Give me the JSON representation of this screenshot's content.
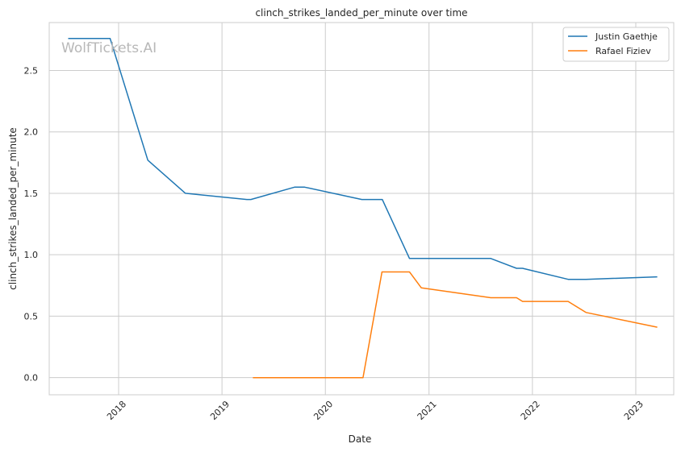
{
  "chart_data": {
    "type": "line",
    "title": "clinch_strikes_landed_per_minute over time",
    "xlabel": "Date",
    "ylabel": "clinch_strikes_landed_per_minute",
    "watermark": "WolfTickets.AI",
    "x_axis": {
      "kind": "date",
      "range": [
        "2017-05-01",
        "2023-05-15"
      ],
      "ticks": [
        "2018-01-01",
        "2019-01-01",
        "2020-01-01",
        "2021-01-01",
        "2022-01-01",
        "2023-01-01"
      ],
      "tick_labels": [
        "2018",
        "2019",
        "2020",
        "2021",
        "2022",
        "2023"
      ]
    },
    "y_axis": {
      "range": [
        -0.14,
        2.89
      ],
      "ticks": [
        0.0,
        0.5,
        1.0,
        1.5,
        2.0,
        2.5
      ],
      "tick_labels": [
        "0.0",
        "0.5",
        "1.0",
        "1.5",
        "2.0",
        "2.5"
      ]
    },
    "grid": true,
    "legend": {
      "position": "top-right"
    },
    "series": [
      {
        "name": "Justin Gaethje",
        "color": "#1f77b4",
        "points": [
          {
            "x": "2017-07-07",
            "y": 2.76
          },
          {
            "x": "2017-12-02",
            "y": 2.76
          },
          {
            "x": "2018-04-14",
            "y": 1.77
          },
          {
            "x": "2018-08-25",
            "y": 1.5
          },
          {
            "x": "2019-03-30",
            "y": 1.45
          },
          {
            "x": "2019-04-13",
            "y": 1.45
          },
          {
            "x": "2019-09-14",
            "y": 1.55
          },
          {
            "x": "2019-10-20",
            "y": 1.55
          },
          {
            "x": "2020-05-09",
            "y": 1.45
          },
          {
            "x": "2020-07-20",
            "y": 1.45
          },
          {
            "x": "2020-10-24",
            "y": 0.97
          },
          {
            "x": "2021-08-07",
            "y": 0.97
          },
          {
            "x": "2021-11-06",
            "y": 0.89
          },
          {
            "x": "2021-11-27",
            "y": 0.89
          },
          {
            "x": "2022-05-07",
            "y": 0.8
          },
          {
            "x": "2022-07-09",
            "y": 0.8
          },
          {
            "x": "2023-03-18",
            "y": 0.82
          }
        ]
      },
      {
        "name": "Rafael Fiziev",
        "color": "#ff7f0e",
        "points": [
          {
            "x": "2019-04-20",
            "y": 0.0
          },
          {
            "x": "2020-05-13",
            "y": 0.0
          },
          {
            "x": "2020-07-19",
            "y": 0.86
          },
          {
            "x": "2020-10-24",
            "y": 0.86
          },
          {
            "x": "2020-12-05",
            "y": 0.73
          },
          {
            "x": "2021-08-07",
            "y": 0.65
          },
          {
            "x": "2021-11-06",
            "y": 0.65
          },
          {
            "x": "2021-11-27",
            "y": 0.62
          },
          {
            "x": "2022-05-07",
            "y": 0.62
          },
          {
            "x": "2022-07-09",
            "y": 0.53
          },
          {
            "x": "2023-03-18",
            "y": 0.41
          }
        ]
      }
    ]
  }
}
